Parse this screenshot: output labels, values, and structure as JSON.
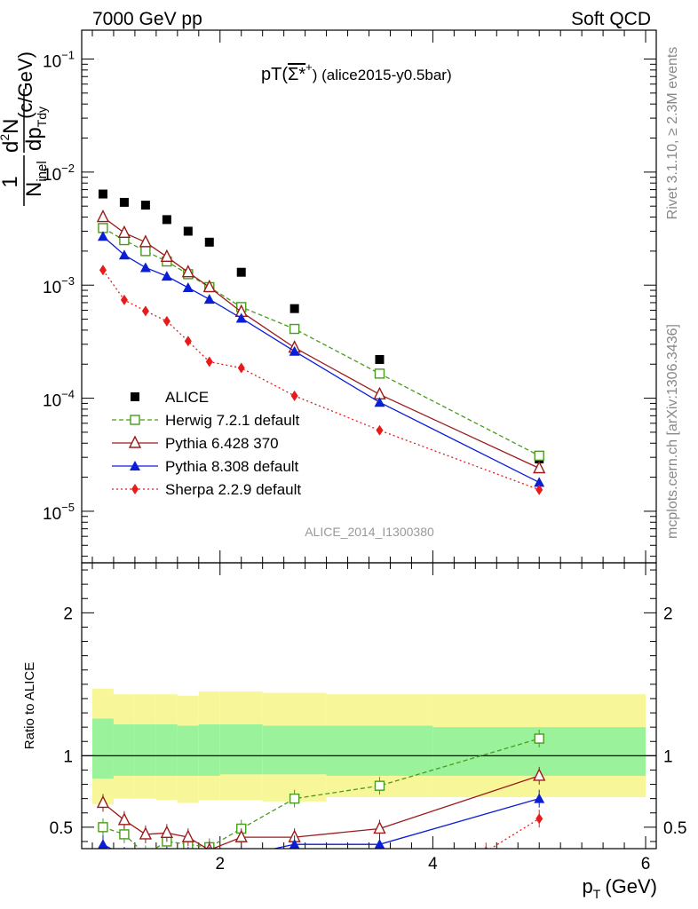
{
  "header": {
    "left": "7000 GeV pp",
    "right": "Soft QCD"
  },
  "side_labels": {
    "rivet": "Rivet 3.1.10, ≥ 2.3M events",
    "mcplots": "mcplots.cern.ch [arXiv:1306.3436]"
  },
  "chart_data": [
    {
      "type": "scatter",
      "panel": "main",
      "title_main": "pT(",
      "title_particle": "Σ*",
      "title_charge": "+",
      "title_tail": ") (alice2015-y0.5bar)",
      "analysis_id": "ALICE_2014_I1300380",
      "ylabel": {
        "frac_num": "1",
        "frac_den_main": "N",
        "frac_den_sub": "inel",
        "d2n_d": "d",
        "d2n_sup": "2",
        "d2n_n": "N",
        "dp_main": "dp",
        "dp_sub": "Tdy",
        "units": "(c/GeV)"
      },
      "yscale": "log",
      "ylim": [
        3.5e-06,
        0.18
      ],
      "xlim": [
        0.7,
        6.1
      ],
      "yticks": [
        {
          "base": "10",
          "exp": "−1",
          "value": 0.1
        },
        {
          "base": "10",
          "exp": "−2",
          "value": 0.01
        },
        {
          "base": "10",
          "exp": "−3",
          "value": 0.001
        },
        {
          "base": "10",
          "exp": "−4",
          "value": 0.0001
        },
        {
          "base": "10",
          "exp": "−5",
          "value": 1e-05
        }
      ],
      "legend_position": "lower-left",
      "series": [
        {
          "name": "ALICE",
          "color": "#000000",
          "marker": "filled-square",
          "x": [
            0.9,
            1.1,
            1.3,
            1.5,
            1.7,
            1.9,
            2.2,
            2.7,
            3.5,
            5.0
          ],
          "y": [
            0.0064,
            0.0054,
            0.0051,
            0.0038,
            0.003,
            0.0024,
            0.0013,
            0.00062,
            0.00022,
            2.9e-05
          ]
        },
        {
          "name": "Herwig 7.2.1 default",
          "color": "#4a9a1e",
          "marker": "open-square",
          "dash": "dashed",
          "x": [
            0.9,
            1.1,
            1.3,
            1.5,
            1.7,
            1.9,
            2.2,
            2.7,
            3.5,
            5.0
          ],
          "y": [
            0.0032,
            0.0025,
            0.002,
            0.00162,
            0.00125,
            0.00096,
            0.00064,
            0.00041,
            0.000165,
            3.1e-05
          ]
        },
        {
          "name": "Pythia 6.428 370",
          "color": "#9b1b1b",
          "marker": "open-triangle",
          "dash": "solid",
          "x": [
            0.9,
            1.1,
            1.3,
            1.5,
            1.7,
            1.9,
            2.2,
            2.7,
            3.5,
            5.0
          ],
          "y": [
            0.004,
            0.0029,
            0.0024,
            0.00178,
            0.0013,
            0.00096,
            0.00058,
            0.00028,
            0.000108,
            2.4e-05
          ]
        },
        {
          "name": "Pythia 8.308 default",
          "color": "#0a1ed6",
          "marker": "filled-triangle",
          "dash": "solid",
          "x": [
            0.9,
            1.1,
            1.3,
            1.5,
            1.7,
            1.9,
            2.2,
            2.7,
            3.5,
            5.0
          ],
          "y": [
            0.0027,
            0.00185,
            0.00143,
            0.0012,
            0.00095,
            0.00075,
            0.00051,
            0.00026,
            9.2e-05,
            1.8e-05
          ]
        },
        {
          "name": "Sherpa 2.2.9 default",
          "color": "#e61c1c",
          "marker": "filled-diamond",
          "dash": "dotted",
          "x": [
            0.9,
            1.1,
            1.3,
            1.5,
            1.7,
            1.9,
            2.2,
            2.7,
            3.5,
            5.0
          ],
          "y": [
            0.00136,
            0.00074,
            0.00059,
            0.00048,
            0.00032,
            0.00021,
            0.000185,
            0.000105,
            5.2e-05,
            1.55e-05
          ]
        }
      ]
    },
    {
      "type": "scatter",
      "panel": "ratio",
      "xlabel_main": "p",
      "xlabel_sub": "T",
      "xlabel_units": "(GeV)",
      "ylabel": "Ratio to ALICE",
      "yscale": "linear",
      "ylim": [
        0.35,
        2.35
      ],
      "xlim": [
        0.7,
        6.1
      ],
      "xticks": [
        "2",
        "4",
        "6"
      ],
      "yticks": [
        "0.5",
        "1",
        "2"
      ],
      "reference_line": 1.0,
      "bands": {
        "bins": [
          0.8,
          1.0,
          1.2,
          1.4,
          1.6,
          1.8,
          2.0,
          2.4,
          3.0,
          4.0,
          6.0
        ],
        "stat_color": "#9af29a",
        "total_color": "#f7f799",
        "inner_lo": [
          0.84,
          0.86,
          0.86,
          0.86,
          0.86,
          0.86,
          0.87,
          0.87,
          0.86,
          0.86
        ],
        "inner_hi": [
          1.26,
          1.22,
          1.22,
          1.22,
          1.21,
          1.22,
          1.22,
          1.21,
          1.21,
          1.2
        ],
        "outer_lo": [
          0.66,
          0.7,
          0.7,
          0.69,
          0.67,
          0.69,
          0.69,
          0.68,
          0.71,
          0.71
        ],
        "outer_hi": [
          1.47,
          1.43,
          1.43,
          1.43,
          1.42,
          1.45,
          1.45,
          1.44,
          1.43,
          1.43
        ]
      },
      "series": [
        {
          "name": "Herwig 7.2.1 default",
          "color": "#4a9a1e",
          "marker": "open-square",
          "dash": "dashed",
          "x": [
            0.9,
            1.1,
            1.3,
            1.5,
            1.7,
            1.9,
            2.2,
            2.7,
            3.5,
            5.0
          ],
          "y": [
            0.5,
            0.45,
            0.31,
            0.4,
            0.38,
            0.36,
            0.49,
            0.7,
            0.79,
            1.12
          ]
        },
        {
          "name": "Pythia 6.428 370",
          "color": "#9b1b1b",
          "marker": "open-triangle",
          "dash": "solid",
          "x": [
            0.9,
            1.1,
            1.3,
            1.5,
            1.7,
            1.9,
            2.2,
            2.7,
            3.5,
            5.0
          ],
          "y": [
            0.67,
            0.55,
            0.45,
            0.46,
            0.43,
            0.34,
            0.43,
            0.43,
            0.49,
            0.86
          ]
        },
        {
          "name": "Pythia 8.308 default",
          "color": "#0a1ed6",
          "marker": "filled-triangle",
          "dash": "solid",
          "x": [
            0.9,
            1.1,
            1.3,
            1.5,
            1.7,
            1.9,
            2.2,
            2.7,
            3.5,
            5.0
          ],
          "y": [
            0.38,
            0.3,
            0.28,
            0.3,
            0.3,
            0.3,
            0.3,
            0.38,
            0.38,
            0.7
          ]
        },
        {
          "name": "Sherpa 2.2.9 default",
          "color": "#e61c1c",
          "marker": "filled-diamond",
          "dash": "dotted",
          "x": [
            4.5,
            5.0
          ],
          "y": [
            0.33,
            0.56
          ]
        }
      ]
    }
  ]
}
